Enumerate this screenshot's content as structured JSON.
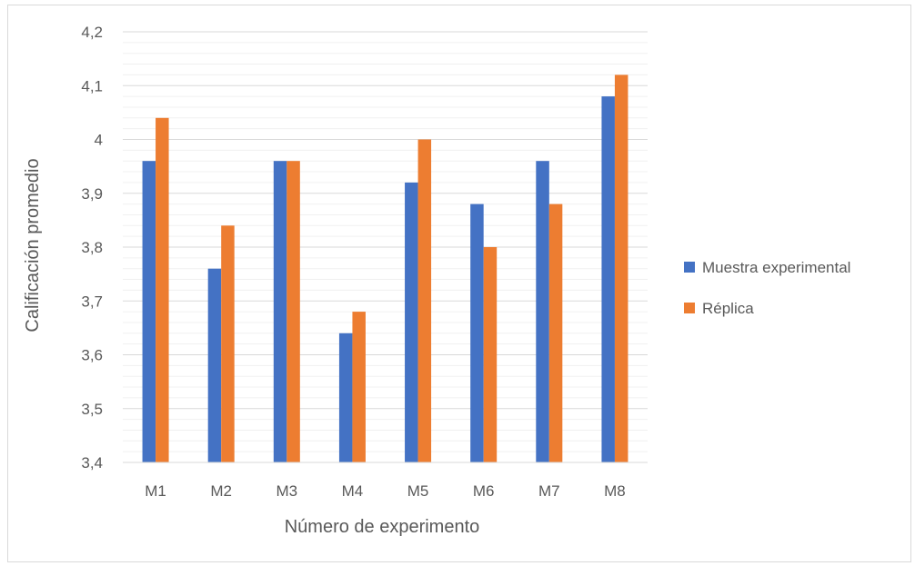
{
  "chart_data": {
    "type": "bar",
    "categories": [
      "M1",
      "M2",
      "M3",
      "M4",
      "M5",
      "M6",
      "M7",
      "M8"
    ],
    "series": [
      {
        "name": "Muestra experimental",
        "color": "#4472C4",
        "values": [
          3.96,
          3.76,
          3.96,
          3.64,
          3.92,
          3.88,
          3.96,
          4.08
        ]
      },
      {
        "name": "Réplica",
        "color": "#ED7D31",
        "values": [
          4.04,
          3.84,
          3.96,
          3.68,
          4.0,
          3.8,
          3.88,
          4.12
        ]
      }
    ],
    "xlabel": "Número de experimento",
    "ylabel": "Calificación promedio",
    "ylim": [
      3.4,
      4.2
    ],
    "yticks": [
      "3,4",
      "3,5",
      "3,6",
      "3,7",
      "3,8",
      "3,9",
      "4",
      "4,1",
      "4,2"
    ],
    "grid": true,
    "minor_grid": true,
    "legend_position": "right"
  }
}
